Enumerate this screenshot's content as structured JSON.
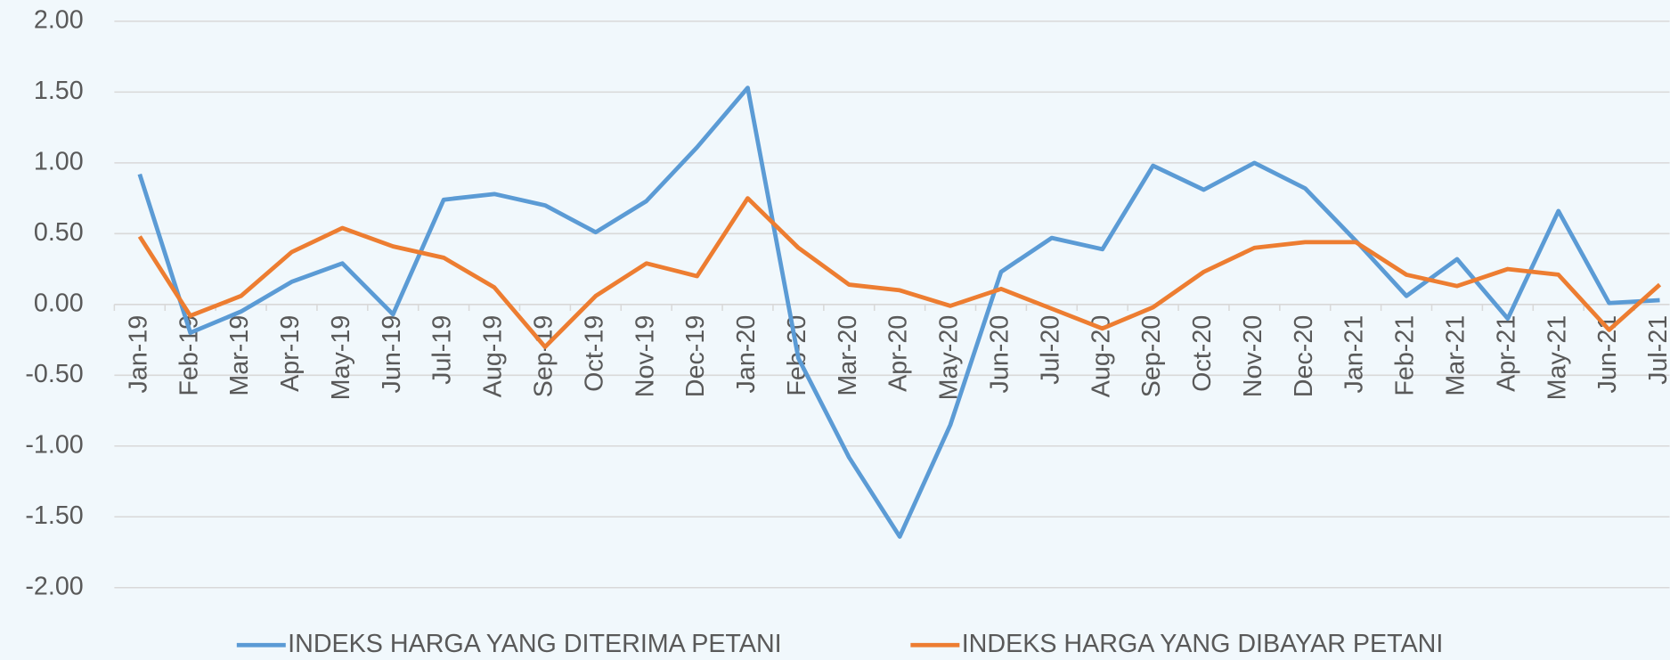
{
  "chart_data": {
    "type": "line",
    "categories": [
      "Jan-19",
      "Feb-19",
      "Mar-19",
      "Apr-19",
      "May-19",
      "Jun-19",
      "Jul-19",
      "Aug-19",
      "Sep-19",
      "Oct-19",
      "Nov-19",
      "Dec-19",
      "Jan-20",
      "Feb-20",
      "Mar-20",
      "Apr-20",
      "May-20",
      "Jun-20",
      "Jul-20",
      "Aug-20",
      "Sep-20",
      "Oct-20",
      "Nov-20",
      "Dec-20",
      "Jan-21",
      "Feb-21",
      "Mar-21",
      "Apr-21",
      "May-21",
      "Jun-21",
      "Jul-21"
    ],
    "series": [
      {
        "name": "INDEKS HARGA YANG DITERIMA PETANI",
        "color": "#5b9bd5",
        "values": [
          0.92,
          -0.2,
          -0.05,
          0.16,
          0.29,
          -0.07,
          0.74,
          0.78,
          0.7,
          0.51,
          0.73,
          1.11,
          1.53,
          -0.38,
          -1.08,
          -1.64,
          -0.85,
          0.23,
          0.47,
          0.39,
          0.98,
          0.81,
          1.0,
          0.82,
          0.45,
          0.06,
          0.32,
          -0.1,
          0.66,
          0.01,
          0.03
        ]
      },
      {
        "name": "INDEKS HARGA YANG DIBAYAR PETANI",
        "color": "#ed7d31",
        "values": [
          0.48,
          -0.08,
          0.06,
          0.37,
          0.54,
          0.41,
          0.33,
          0.12,
          -0.3,
          0.06,
          0.29,
          0.2,
          0.75,
          0.4,
          0.14,
          0.1,
          -0.01,
          0.11,
          -0.03,
          -0.17,
          -0.02,
          0.23,
          0.4,
          0.44,
          0.44,
          0.21,
          0.13,
          0.25,
          0.21,
          -0.18,
          0.14
        ]
      }
    ],
    "ylim": [
      -2,
      2
    ],
    "yticks": [
      {
        "value": -2,
        "label": "-2.00"
      },
      {
        "value": -1.5,
        "label": "-1.50"
      },
      {
        "value": -1,
        "label": "-1.00"
      },
      {
        "value": -0.5,
        "label": "-0.50"
      },
      {
        "value": 0,
        "label": "0.00"
      },
      {
        "value": 0.5,
        "label": "0.50"
      },
      {
        "value": 1,
        "label": "1.00"
      },
      {
        "value": 1.5,
        "label": "1.50"
      },
      {
        "value": 2,
        "label": "2.00"
      }
    ],
    "grid": true,
    "legend": "bottom"
  }
}
